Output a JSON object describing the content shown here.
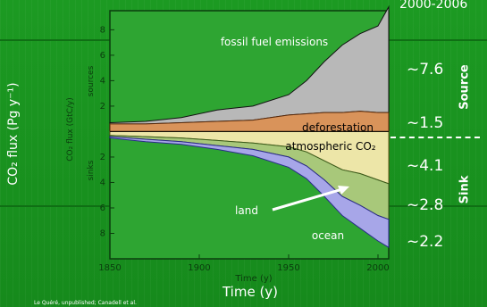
{
  "chart_data": {
    "type": "area",
    "period_label": "2000-2006",
    "x_ticks": [
      "1850",
      "1900",
      "1950",
      "2000"
    ],
    "y_ticks_top": [
      "8",
      "6",
      "4",
      "2"
    ],
    "y_ticks_bottom": [
      "2",
      "4",
      "6",
      "8"
    ],
    "xlim": [
      1850,
      2006
    ],
    "ylim": [
      -10,
      9.5
    ],
    "xlabel_inner": "Time (y)",
    "ylabel_inner": "CO₂ flux (GtC/y)",
    "ylabel_sources": "sources",
    "ylabel_sinks": "sinks",
    "outer_xlabel": "Time (y)",
    "outer_ylabel": "CO₂ flux (Pg y⁻¹)",
    "x": [
      1850,
      1870,
      1890,
      1910,
      1930,
      1950,
      1960,
      1970,
      1980,
      1990,
      2000,
      2006
    ],
    "series": [
      {
        "name": "fossil fuel emissions",
        "values": [
          0.1,
          0.2,
          0.4,
          0.9,
          1.1,
          1.6,
          2.6,
          4.0,
          5.3,
          6.1,
          6.8,
          8.3
        ]
      },
      {
        "name": "deforestation",
        "values": [
          0.6,
          0.6,
          0.7,
          0.8,
          0.9,
          1.3,
          1.4,
          1.5,
          1.5,
          1.6,
          1.5,
          1.5
        ]
      },
      {
        "name": "atmospheric CO₂",
        "values": [
          -0.3,
          -0.4,
          -0.5,
          -0.7,
          -0.9,
          -1.2,
          -1.6,
          -2.3,
          -3.0,
          -3.3,
          -3.8,
          -4.1
        ]
      },
      {
        "name": "land",
        "values": [
          -0.1,
          -0.2,
          -0.3,
          -0.4,
          -0.5,
          -0.8,
          -1.1,
          -1.5,
          -2.1,
          -2.5,
          -2.8,
          -2.8
        ]
      },
      {
        "name": "ocean",
        "values": [
          -0.1,
          -0.2,
          -0.2,
          -0.3,
          -0.5,
          -0.8,
          -1.0,
          -1.3,
          -1.5,
          -1.8,
          -2.0,
          -2.2
        ]
      }
    ],
    "annotations": {
      "fossil": "fossil fuel emissions",
      "deforestation": "deforestation",
      "atmospheric": "atmospheric CO₂",
      "land": "land",
      "ocean": "ocean"
    },
    "right_values": [
      {
        "label": "~7.6"
      },
      {
        "label": "~1.5"
      },
      {
        "label": "~4.1"
      },
      {
        "label": "~2.8"
      },
      {
        "label": "~2.2"
      }
    ],
    "right_groups": {
      "source": "Source",
      "sink": "Sink"
    }
  },
  "credit": "Le Quéré, unpublished; Canadell et al.",
  "colors": {
    "background": "#1a8f1f",
    "plot_bg": "#2ea532",
    "fossil": "#b8b8b8",
    "deforestation": "#d9935a",
    "atmospheric": "#ede6a8",
    "land": "#a8c87a",
    "ocean": "#a7a6e8",
    "text_white": "#ffffff"
  }
}
